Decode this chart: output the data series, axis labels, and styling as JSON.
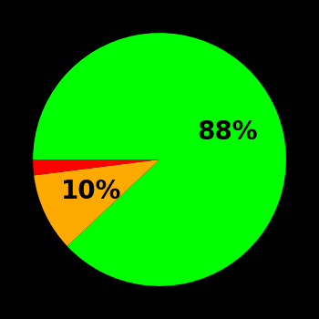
{
  "slices": [
    88,
    10,
    2
  ],
  "colors": [
    "#00ff00",
    "#ffaa00",
    "#ff0000"
  ],
  "labels": [
    "88%",
    "10%",
    ""
  ],
  "background_color": "#000000",
  "startangle": 180,
  "label_fontsize": 20,
  "label_fontweight": "bold",
  "label_colors": [
    "#000000",
    "#000000",
    "#000000"
  ],
  "figsize": [
    3.5,
    3.5
  ],
  "dpi": 100
}
